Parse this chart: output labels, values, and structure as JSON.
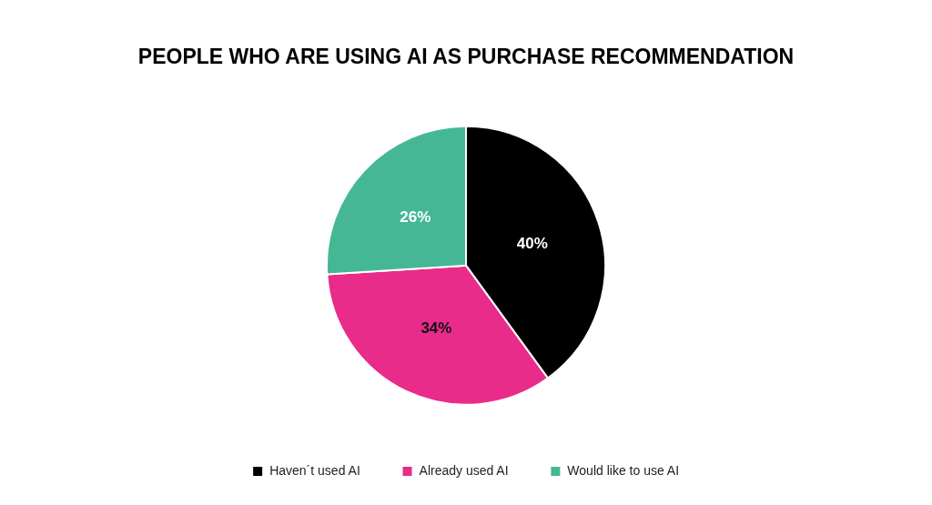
{
  "chart_data": {
    "type": "pie",
    "title": "PEOPLE WHO ARE USING AI AS PURCHASE RECOMMENDATION",
    "categories": [
      "Haven´t used AI",
      "Already used AI",
      "Would like to use AI"
    ],
    "values": [
      40,
      34,
      26
    ],
    "colors": [
      "#000000",
      "#e92b8a",
      "#45b795"
    ],
    "value_labels": [
      "40%",
      "34%",
      "26%"
    ],
    "legend": "bottom"
  }
}
